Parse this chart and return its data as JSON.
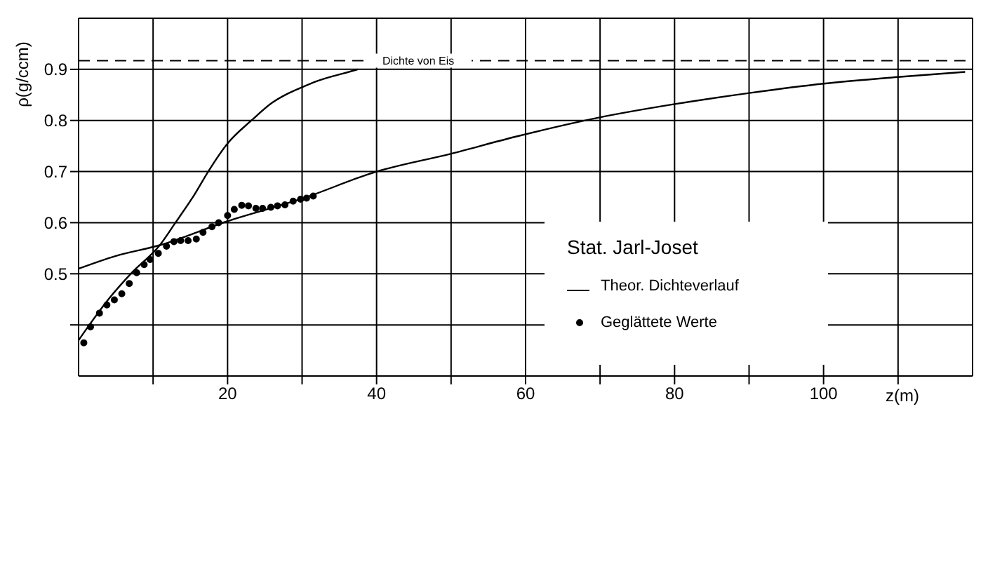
{
  "chart_data": {
    "type": "line",
    "ylabel": "ρ(g/ccm)",
    "xlabel": "z(m)",
    "legend_title": "Stat. Jarl-Joset",
    "legend": "right",
    "grid": true,
    "xlim": [
      0,
      120
    ],
    "ylim": [
      0.3,
      1.0
    ],
    "xticks": [
      {
        "value": 10,
        "label": null
      },
      20,
      {
        "value": 30,
        "label": null
      },
      40,
      {
        "value": 50,
        "label": null
      },
      60,
      {
        "value": 70,
        "label": null
      },
      80,
      {
        "value": 90,
        "label": null
      },
      100,
      {
        "value": 110,
        "label": null
      }
    ],
    "yticks": [
      {
        "value": 0.4,
        "label": null
      },
      0.5,
      0.6,
      0.7,
      0.8,
      0.9
    ],
    "ref_lines": [
      {
        "axis": "y",
        "value": 0.917,
        "label": "Dichte von Eis",
        "line_style": "dashed",
        "color": "#000000"
      }
    ],
    "series": [
      {
        "name": "Theor. Dichteverlauf",
        "marker": "none",
        "color": "#000000",
        "x": [
          0,
          1.3,
          4,
          7.2,
          10.9,
          13,
          15.6,
          17.4,
          20,
          23.2,
          26,
          28,
          30,
          32,
          35,
          37.5
        ],
        "values": [
          0.37,
          0.397,
          0.45,
          0.503,
          0.556,
          0.6,
          0.656,
          0.7,
          0.755,
          0.8,
          0.835,
          0.852,
          0.865,
          0.877,
          0.89,
          0.9
        ]
      },
      {
        "marker": "none",
        "color": "#000000",
        "x": [
          0,
          5,
          10.9,
          20,
          30,
          40,
          50,
          58.6,
          69.6,
          80,
          90.2,
          100,
          110,
          119
        ],
        "values": [
          0.51,
          0.535,
          0.556,
          0.603,
          0.647,
          0.7,
          0.735,
          0.768,
          0.805,
          0.832,
          0.854,
          0.872,
          0.885,
          0.895
        ]
      },
      {
        "name": "Geglättete Werte",
        "type": "scatter",
        "marker": "circle",
        "color": "#000000",
        "x": [
          0.7,
          1.6,
          2.8,
          3.8,
          4.8,
          5.8,
          6.8,
          7.8,
          8.8,
          9.6,
          10.7,
          11.8,
          12.8,
          13.7,
          14.7,
          15.8,
          16.7,
          17.9,
          18.8,
          20,
          20.9,
          21.9,
          22.8,
          23.8,
          24.7,
          25.8,
          26.7,
          27.7,
          28.8,
          29.8,
          30.6,
          31.5
        ],
        "values": [
          0.365,
          0.396,
          0.423,
          0.439,
          0.449,
          0.461,
          0.481,
          0.502,
          0.518,
          0.528,
          0.54,
          0.554,
          0.563,
          0.565,
          0.565,
          0.568,
          0.581,
          0.592,
          0.6,
          0.614,
          0.626,
          0.634,
          0.633,
          0.628,
          0.628,
          0.63,
          0.633,
          0.635,
          0.642,
          0.646,
          0.648,
          0.652
        ]
      }
    ]
  }
}
